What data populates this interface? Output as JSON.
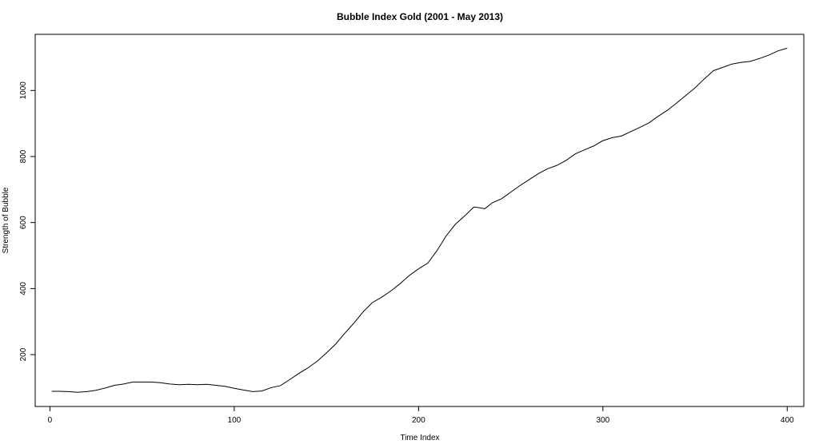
{
  "chart_data": {
    "type": "line",
    "title": "Bubble Index Gold (2001 - May 2013)",
    "xlabel": "Time Index",
    "ylabel": "Strength of Bubble",
    "xlim": [
      -8,
      409
    ],
    "ylim": [
      43,
      1170
    ],
    "xticks": [
      0,
      100,
      200,
      300,
      400
    ],
    "yticks": [
      200,
      400,
      600,
      800,
      1000
    ],
    "grid": false,
    "series": [
      {
        "x": [
          1,
          5,
          10,
          15,
          20,
          25,
          30,
          35,
          40,
          45,
          50,
          55,
          60,
          65,
          70,
          75,
          80,
          85,
          90,
          95,
          100,
          105,
          110,
          115,
          120,
          125,
          130,
          135,
          140,
          145,
          150,
          155,
          160,
          165,
          170,
          175,
          180,
          185,
          190,
          195,
          200,
          205,
          210,
          215,
          220,
          225,
          230,
          233,
          236,
          240,
          245,
          250,
          255,
          260,
          265,
          270,
          275,
          280,
          285,
          290,
          295,
          300,
          305,
          310,
          315,
          320,
          325,
          330,
          335,
          340,
          345,
          350,
          355,
          360,
          365,
          370,
          375,
          380,
          385,
          390,
          395,
          400
        ],
        "y": [
          89,
          89,
          88,
          86,
          88,
          92,
          99,
          107,
          111,
          117,
          117,
          117,
          115,
          111,
          109,
          110,
          109,
          110,
          107,
          104,
          98,
          93,
          88,
          90,
          100,
          106,
          124,
          143,
          160,
          180,
          205,
          232,
          265,
          296,
          330,
          358,
          374,
          393,
          415,
          440,
          460,
          477,
          515,
          560,
          595,
          620,
          647,
          645,
          642,
          660,
          672,
          692,
          712,
          730,
          748,
          763,
          773,
          788,
          808,
          820,
          832,
          848,
          857,
          862,
          875,
          888,
          902,
          922,
          940,
          962,
          985,
          1008,
          1035,
          1060,
          1070,
          1080,
          1085,
          1088,
          1097,
          1107,
          1120,
          1128
        ]
      }
    ]
  }
}
